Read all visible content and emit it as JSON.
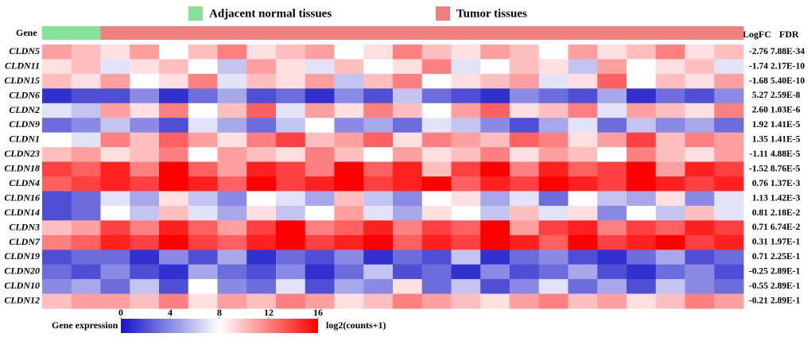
{
  "chart_data": {
    "type": "heatmap",
    "groups": [
      {
        "name": "Adjacent normal tissues",
        "color": "#86e29b"
      },
      {
        "name": "Tumor tissues",
        "color": "#f08080"
      }
    ],
    "column_groups": [
      0,
      0,
      1,
      1,
      1,
      1,
      1,
      1,
      1,
      1,
      1,
      1,
      1,
      1,
      1,
      1,
      1,
      1,
      1,
      1,
      1,
      1,
      1,
      1
    ],
    "row_header": "Gene",
    "stat_headers": [
      "LogFC",
      "FDR"
    ],
    "series": [
      {
        "name": "CLDN5",
        "logfc": "-2.76",
        "fdr": "7.88E-34",
        "values": [
          11,
          10,
          9,
          11,
          8,
          10,
          12,
          9,
          10,
          11,
          8,
          9,
          12,
          10,
          9,
          11,
          10,
          8,
          11,
          9,
          10,
          12,
          9,
          10
        ]
      },
      {
        "name": "CLDN11",
        "logfc": "-1.74",
        "fdr": "2.17E-10",
        "values": [
          9,
          10,
          7,
          9,
          10,
          8,
          6,
          11,
          9,
          7,
          10,
          8,
          9,
          12,
          7,
          8,
          10,
          9,
          6,
          11,
          8,
          9,
          10,
          7
        ]
      },
      {
        "name": "CLDN15",
        "logfc": "-1.68",
        "fdr": "5.40E-10",
        "values": [
          10,
          9,
          11,
          8,
          9,
          12,
          7,
          10,
          9,
          11,
          6,
          10,
          12,
          8,
          9,
          10,
          11,
          7,
          9,
          13,
          8,
          10,
          9,
          11
        ]
      },
      {
        "name": "CLDN6",
        "logfc": "5.27",
        "fdr": "2.59E-8",
        "values": [
          1,
          2,
          2,
          4,
          1,
          3,
          5,
          2,
          3,
          1,
          4,
          2,
          6,
          3,
          2,
          1,
          4,
          3,
          2,
          5,
          1,
          3,
          2,
          4
        ]
      },
      {
        "name": "CLDN2",
        "logfc": "2.60",
        "fdr": "1.03E-6",
        "values": [
          7,
          6,
          11,
          9,
          12,
          8,
          10,
          13,
          7,
          11,
          9,
          12,
          10,
          8,
          11,
          13,
          9,
          10,
          12,
          7,
          11,
          10,
          9,
          12
        ]
      },
      {
        "name": "CLDN9",
        "logfc": "1.92",
        "fdr": "1.41E-5",
        "values": [
          3,
          4,
          6,
          4,
          2,
          7,
          5,
          3,
          6,
          8,
          4,
          5,
          3,
          7,
          6,
          4,
          2,
          5,
          7,
          3,
          6,
          4,
          5,
          3
        ]
      },
      {
        "name": "CLDN1",
        "logfc": "1.35",
        "fdr": "1.41E-5",
        "values": [
          8,
          7,
          12,
          10,
          13,
          11,
          9,
          12,
          14,
          10,
          11,
          13,
          9,
          12,
          11,
          10,
          13,
          12,
          9,
          11,
          14,
          10,
          12,
          11
        ]
      },
      {
        "name": "CLDN23",
        "logfc": "-1.11",
        "fdr": "4.88E-5",
        "values": [
          10,
          11,
          9,
          10,
          12,
          8,
          11,
          10,
          9,
          12,
          10,
          8,
          11,
          9,
          10,
          12,
          9,
          11,
          10,
          8,
          12,
          10,
          9,
          11
        ]
      },
      {
        "name": "CLDN18",
        "logfc": "-1.52",
        "fdr": "8.76E-5",
        "values": [
          14,
          13,
          15,
          12,
          16,
          13,
          11,
          15,
          14,
          12,
          16,
          13,
          15,
          10,
          14,
          16,
          12,
          15,
          13,
          14,
          16,
          11,
          15,
          14
        ]
      },
      {
        "name": "CLDN4",
        "logfc": "0.76",
        "fdr": "1.37E-3",
        "values": [
          13,
          14,
          15,
          14,
          16,
          15,
          13,
          16,
          14,
          15,
          16,
          14,
          15,
          16,
          13,
          15,
          14,
          16,
          15,
          14,
          16,
          15,
          14,
          15
        ]
      },
      {
        "name": "CLDN16",
        "logfc": "1.13",
        "fdr": "1.42E-3",
        "values": [
          2,
          3,
          7,
          5,
          9,
          6,
          4,
          8,
          7,
          5,
          10,
          6,
          4,
          8,
          9,
          5,
          7,
          3,
          8,
          6,
          5,
          9,
          4,
          7
        ]
      },
      {
        "name": "CLDN14",
        "logfc": "0.81",
        "fdr": "2.18E-2",
        "values": [
          2,
          3,
          8,
          6,
          10,
          7,
          5,
          9,
          6,
          8,
          11,
          7,
          5,
          9,
          8,
          6,
          10,
          7,
          9,
          4,
          8,
          6,
          10,
          7
        ]
      },
      {
        "name": "CLDN3",
        "logfc": "0.71",
        "fdr": "6.74E-2",
        "values": [
          10,
          11,
          14,
          12,
          15,
          13,
          11,
          14,
          16,
          12,
          13,
          15,
          12,
          14,
          13,
          16,
          11,
          14,
          15,
          12,
          14,
          13,
          15,
          14
        ]
      },
      {
        "name": "CLDN7",
        "logfc": "0.31",
        "fdr": "1.97E-1",
        "values": [
          12,
          13,
          15,
          14,
          16,
          14,
          13,
          15,
          16,
          14,
          15,
          16,
          13,
          15,
          14,
          16,
          15,
          13,
          16,
          14,
          15,
          16,
          14,
          15
        ]
      },
      {
        "name": "CLDN19",
        "logfc": "0.71",
        "fdr": "2.25E-1",
        "values": [
          2,
          3,
          3,
          1,
          4,
          2,
          5,
          1,
          3,
          2,
          4,
          1,
          3,
          2,
          6,
          1,
          3,
          4,
          2,
          1,
          3,
          5,
          2,
          3
        ]
      },
      {
        "name": "CLDN20",
        "logfc": "-0.25",
        "fdr": "2.89E-1",
        "values": [
          3,
          2,
          4,
          2,
          1,
          5,
          3,
          2,
          4,
          1,
          3,
          6,
          2,
          3,
          1,
          4,
          2,
          3,
          5,
          2,
          1,
          3,
          4,
          2
        ]
      },
      {
        "name": "CLDN10",
        "logfc": "-0.55",
        "fdr": "2.89E-1",
        "values": [
          4,
          5,
          3,
          6,
          2,
          8,
          4,
          3,
          7,
          2,
          5,
          4,
          9,
          3,
          6,
          2,
          4,
          7,
          3,
          5,
          2,
          6,
          4,
          3
        ]
      },
      {
        "name": "CLDN12",
        "logfc": "-0.21",
        "fdr": "2.89E-1",
        "values": [
          10,
          11,
          11,
          10,
          12,
          9,
          11,
          10,
          12,
          11,
          9,
          10,
          12,
          11,
          10,
          9,
          11,
          12,
          10,
          11,
          9,
          10,
          12,
          11
        ]
      }
    ],
    "colorbar": {
      "label": "Gene expression",
      "unit": "log2(counts+1)",
      "zlim": [
        0,
        16
      ],
      "ticks": [
        0,
        4,
        8,
        12,
        16
      ],
      "colors": [
        "#1414c8",
        "#ffffff",
        "#ff0000"
      ]
    }
  }
}
